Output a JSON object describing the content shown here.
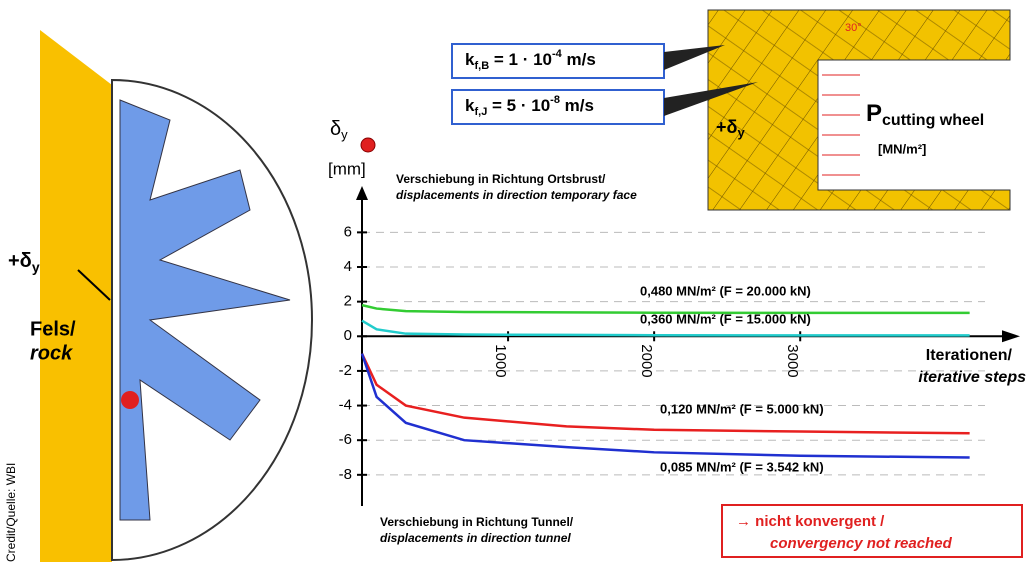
{
  "chart_data": {
    "type": "line",
    "y_label": {
      "symbol": "δ",
      "sub": "y",
      "unit": "[mm]"
    },
    "top_note": [
      "Verschiebung in Richtung Ortsbrust/",
      "displacements in direction temporary face"
    ],
    "bottom_note": [
      "Verschiebung in Richtung Tunnel/",
      "displacements in direction tunnel"
    ],
    "x_label": [
      "Iterationen/",
      "iterative steps"
    ],
    "callout": [
      "→ nicht konvergent /",
      "convergency not reached"
    ],
    "x": [
      0,
      100,
      300,
      700,
      1400,
      2000,
      3000,
      4160
    ],
    "series": [
      {
        "name": "0,480 MN/m² (F = 20.000 kN)",
        "color": "#33cc33",
        "values": [
          1.8,
          1.6,
          1.45,
          1.4,
          1.38,
          1.36,
          1.35,
          1.35
        ]
      },
      {
        "name": "0,360 MN/m² (F = 15.000 kN)",
        "color": "#22cccc",
        "values": [
          0.9,
          0.4,
          0.15,
          0.1,
          0.08,
          0.06,
          0.05,
          0.05
        ]
      },
      {
        "name": "0,120 MN/m² (F = 5.000 kN)",
        "color": "#e82020",
        "values": [
          -1,
          -2.8,
          -4,
          -4.7,
          -5.2,
          -5.4,
          -5.5,
          -5.6
        ]
      },
      {
        "name": "0,085 MN/m² (F = 3.542 kN)",
        "color": "#2030d0",
        "values": [
          -1,
          -3.5,
          -5,
          -6,
          -6.4,
          -6.7,
          -6.9,
          -7
        ]
      }
    ],
    "xlim": [
      0,
      4450
    ],
    "xticks": [
      1000,
      2000,
      3000
    ],
    "ylim": [
      -9.8,
      8.1
    ],
    "yticks": [
      -8,
      -6,
      -4,
      -2,
      0,
      2,
      4,
      6
    ],
    "grid": true
  },
  "diagram": {
    "rock": [
      "Fels/",
      "rock"
    ],
    "delta_left": {
      "main": "+δ",
      "sub": "y"
    },
    "delta_right": {
      "main": "+δ",
      "sub": "y"
    },
    "kfb": {
      "main": "k",
      "sub": "f,B",
      "rest": " = 1 · 10",
      "sup": "-4",
      "unit": " m/s"
    },
    "kfj": {
      "main": "k",
      "sub": "f,J",
      "rest": " = 5 · 10",
      "sup": "-8",
      "unit": " m/s"
    },
    "pressure": {
      "main": "P",
      "sub": "cutting wheel",
      "unit": "[MN/m²]"
    },
    "angle": "30°",
    "credit": "Credit/Quelle: WBI"
  }
}
